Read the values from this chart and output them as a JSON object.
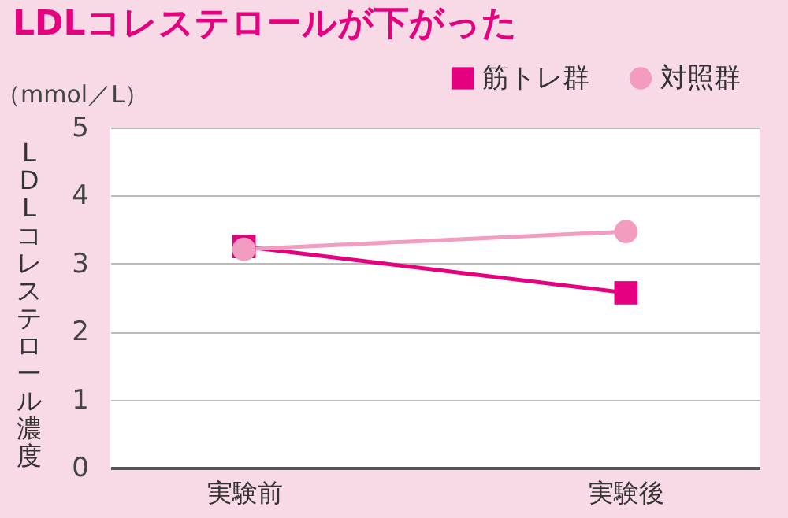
{
  "chart_data": {
    "type": "line",
    "title": "LDLコレステロールが下がった",
    "ylabel": "LDLコレステロール濃度",
    "annotations": [
      "（mmol／L）"
    ],
    "categories": [
      "実験前",
      "実験後"
    ],
    "series": [
      {
        "name": "筋トレ群",
        "color": "#e4007f",
        "marker": "square",
        "values": [
          3.25,
          2.57
        ]
      },
      {
        "name": "対照群",
        "color": "#f29cc0",
        "marker": "circle",
        "values": [
          3.21,
          3.47
        ]
      }
    ],
    "ylim": [
      0,
      5
    ],
    "yticks": [
      0,
      1,
      2,
      3,
      4,
      5
    ],
    "grid": "y",
    "legend": "top right",
    "line_style": "solid"
  }
}
